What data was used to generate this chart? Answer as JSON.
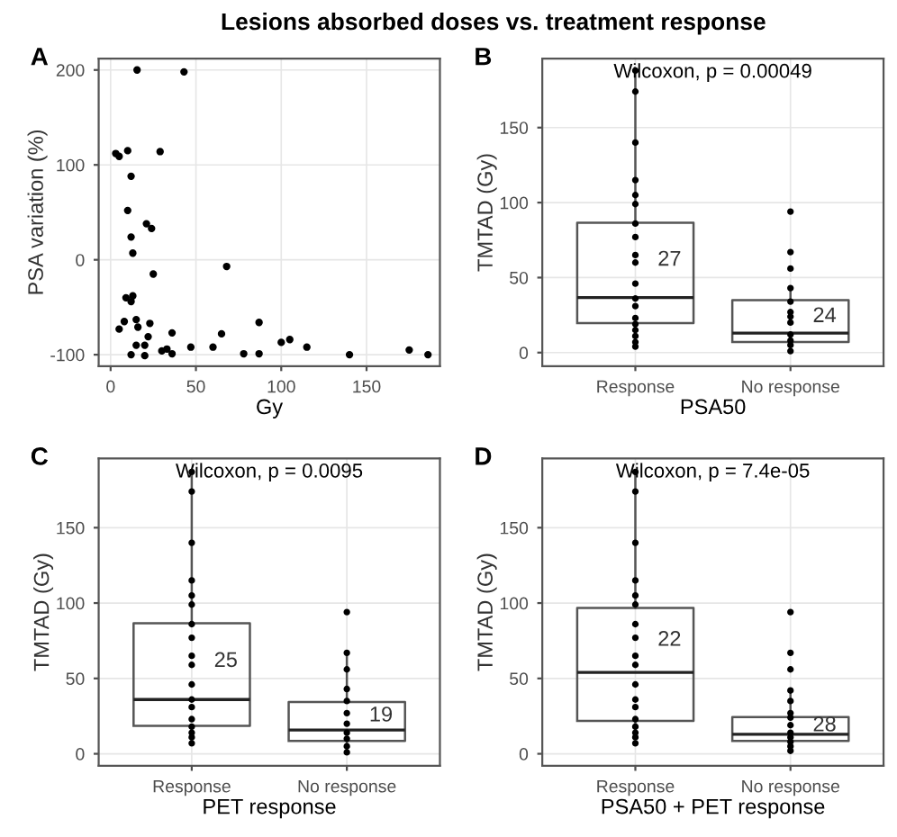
{
  "chart_data": [
    {
      "type": "scatter",
      "title": "A",
      "annotations": [
        "Lesions absorbed doses vs. treatment response"
      ],
      "xlabel": "Gy",
      "ylabel": "PSA variation (%)",
      "xlim": [
        -7,
        193
      ],
      "xticks": [
        0,
        50,
        100,
        150
      ],
      "ylim": [
        -112,
        212
      ],
      "yticks": [
        -100,
        0,
        100,
        200
      ],
      "grid": true,
      "marker": "circle",
      "series": [
        {
          "color": "#000000",
          "x": [
            15.5,
            43,
            3,
            5,
            10,
            29,
            12,
            10,
            21,
            24,
            12,
            13,
            68,
            25,
            9,
            13,
            12,
            5,
            8,
            15,
            16,
            23,
            22,
            20,
            15,
            12,
            20,
            30,
            33,
            36,
            36,
            47,
            60,
            65,
            78,
            87,
            87,
            100,
            105,
            115,
            140,
            175,
            186
          ],
          "values": [
            200,
            198,
            112,
            109,
            115,
            114,
            88,
            52,
            38,
            33,
            24,
            7,
            -7,
            -15,
            -40,
            -38,
            -44,
            -73,
            -65,
            -63,
            -71,
            -67,
            -81,
            -90,
            -90,
            -100,
            -101,
            -96,
            -94,
            -77,
            -99,
            -92,
            -92,
            -78,
            -99,
            -66,
            -99,
            -87,
            -84,
            -92,
            -100,
            -95,
            -100
          ]
        }
      ]
    },
    {
      "type": "box",
      "title": "B",
      "annotations": [
        "Wilcoxon, p = 0.00049",
        "27",
        "24"
      ],
      "xlabel": "PSA50",
      "ylabel": "TMTAD (Gy)",
      "categories": [
        "Response",
        "No response"
      ],
      "ylim": [
        -9,
        196
      ],
      "yticks": [
        0,
        50,
        100,
        150
      ],
      "grid": true,
      "marker": "circle",
      "boxes": [
        {
          "low": 4,
          "q1": 19.6,
          "median": 36.7,
          "q3": 86.6,
          "high": 188
        },
        {
          "low": 1,
          "q1": 7,
          "median": 13,
          "q3": 35,
          "high": 43
        }
      ],
      "series": [
        {
          "type": "scatter",
          "color": "#000000",
          "x": [
            "Response",
            "Response",
            "Response",
            "Response",
            "Response",
            "Response",
            "Response",
            "Response",
            "Response",
            "Response",
            "Response",
            "Response",
            "Response",
            "Response",
            "Response",
            "Response",
            "Response",
            "Response",
            "Response",
            "No response",
            "No response",
            "No response",
            "No response",
            "No response",
            "No response",
            "No response",
            "No response",
            "No response",
            "No response",
            "No response",
            "No response"
          ],
          "values": [
            188,
            174,
            140,
            115,
            105,
            99,
            86,
            77,
            65,
            60,
            46,
            36,
            31,
            23,
            19,
            15,
            11,
            7,
            4,
            94,
            67,
            56,
            43,
            34,
            27,
            24,
            20,
            12,
            8,
            5,
            1
          ]
        }
      ]
    },
    {
      "type": "box",
      "title": "C",
      "annotations": [
        "Wilcoxon, p = 0.0095",
        "25",
        "19"
      ],
      "xlabel": "PET response",
      "ylabel": "TMTAD (Gy)",
      "categories": [
        "Response",
        "No response"
      ],
      "ylim": [
        -8,
        196
      ],
      "yticks": [
        0,
        50,
        100,
        150
      ],
      "grid": true,
      "marker": "circle",
      "boxes": [
        {
          "low": 7,
          "q1": 18.6,
          "median": 36,
          "q3": 86.6,
          "high": 187
        },
        {
          "low": 1.5,
          "q1": 8.6,
          "median": 15.8,
          "q3": 34.4,
          "high": 67
        }
      ],
      "series": [
        {
          "type": "scatter",
          "color": "#000000",
          "x": [
            "Response",
            "Response",
            "Response",
            "Response",
            "Response",
            "Response",
            "Response",
            "Response",
            "Response",
            "Response",
            "Response",
            "Response",
            "Response",
            "Response",
            "Response",
            "Response",
            "Response",
            "Response",
            "No response",
            "No response",
            "No response",
            "No response",
            "No response",
            "No response",
            "No response",
            "No response",
            "No response",
            "No response",
            "No response"
          ],
          "values": [
            187,
            174,
            140,
            115,
            105,
            99,
            86,
            77,
            65,
            59,
            46,
            36,
            31,
            23,
            18,
            14,
            11,
            7,
            94,
            67,
            56,
            43,
            35,
            27,
            20,
            14,
            10,
            5,
            1
          ]
        }
      ]
    },
    {
      "type": "box",
      "title": "D",
      "annotations": [
        "Wilcoxon, p = 7.4e-05",
        "22",
        "28"
      ],
      "xlabel": "PSA50 + PET response",
      "ylabel": "TMTAD (Gy)",
      "categories": [
        "Response",
        "No response"
      ],
      "ylim": [
        -8,
        196
      ],
      "yticks": [
        0,
        50,
        100,
        150
      ],
      "grid": true,
      "marker": "circle",
      "boxes": [
        {
          "low": 14,
          "q1": 21.8,
          "median": 54,
          "q3": 96.7,
          "high": 187
        },
        {
          "low": 1,
          "q1": 8.6,
          "median": 12.9,
          "q3": 24.3,
          "high": 42
        }
      ],
      "series": [
        {
          "type": "scatter",
          "color": "#000000",
          "x": [
            "Response",
            "Response",
            "Response",
            "Response",
            "Response",
            "Response",
            "Response",
            "Response",
            "Response",
            "Response",
            "Response",
            "Response",
            "Response",
            "Response",
            "Response",
            "Response",
            "Response",
            "Response",
            "No response",
            "No response",
            "No response",
            "No response",
            "No response",
            "No response",
            "No response",
            "No response",
            "No response",
            "No response",
            "No response",
            "No response",
            "No response"
          ],
          "values": [
            187,
            174,
            140,
            115,
            105,
            99,
            86,
            77,
            65,
            59,
            46,
            36,
            31,
            23,
            18,
            14,
            11,
            7,
            94,
            67,
            56,
            42,
            35,
            27,
            24,
            19,
            14,
            11,
            8,
            5,
            2
          ]
        }
      ]
    }
  ]
}
